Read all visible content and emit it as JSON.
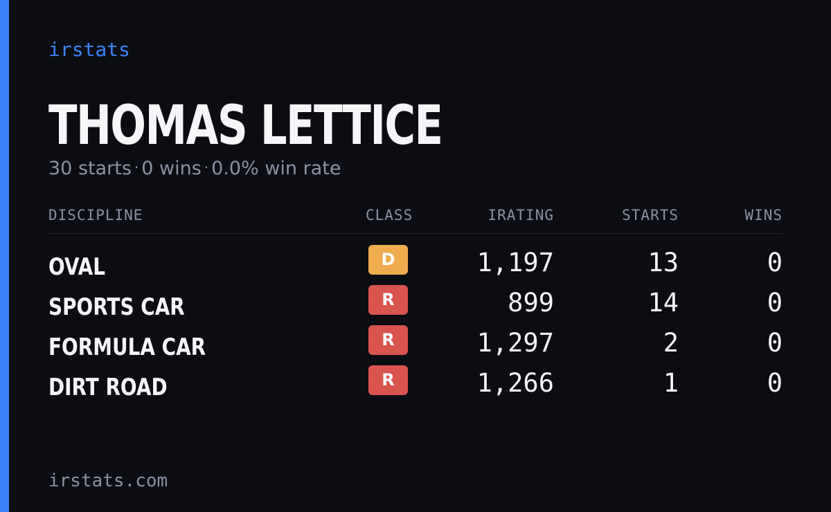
{
  "brand": "irstats",
  "driver": {
    "name": "THOMAS LETTICE",
    "starts": "30 starts",
    "wins": "0 wins",
    "win_rate": "0.0% win rate",
    "separator": "·"
  },
  "table": {
    "headers": {
      "discipline": "DISCIPLINE",
      "class": "CLASS",
      "irating": "IRATING",
      "starts": "STARTS",
      "wins": "WINS"
    },
    "rows": [
      {
        "discipline": "OVAL",
        "class": "D",
        "class_color": "#f0ad4e",
        "irating": "1,197",
        "starts": "13",
        "wins": "0"
      },
      {
        "discipline": "SPORTS CAR",
        "class": "R",
        "class_color": "#d9534f",
        "irating": "899",
        "starts": "14",
        "wins": "0"
      },
      {
        "discipline": "FORMULA CAR",
        "class": "R",
        "class_color": "#d9534f",
        "irating": "1,297",
        "starts": "2",
        "wins": "0"
      },
      {
        "discipline": "DIRT ROAD",
        "class": "R",
        "class_color": "#d9534f",
        "irating": "1,266",
        "starts": "1",
        "wins": "0"
      }
    ]
  },
  "footer": "irstats.com",
  "colors": {
    "accent": "#3b82f6",
    "background": "#0b0d13",
    "text_primary": "#f5f6f8",
    "text_muted": "#8b93a3"
  }
}
